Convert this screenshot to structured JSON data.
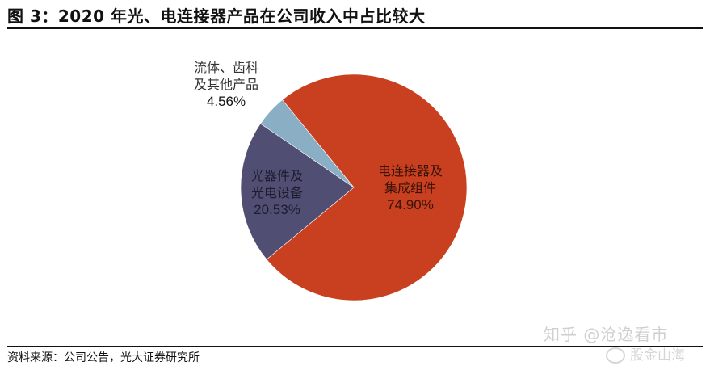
{
  "header": {
    "title": "图 3：2020 年光、电连接器产品在公司收入中占比较大"
  },
  "footer": {
    "source": "资料来源：公司公告，光大证券研究所"
  },
  "watermark": {
    "line1": "知乎 @沧逸看市",
    "line2": "股金山海"
  },
  "colors": {
    "connector": "#C8401F",
    "optical": "#514E73",
    "other": "#8AAFC4",
    "rule": "#111111"
  },
  "labels": {
    "other_line1": "流体、齿科",
    "other_line2": "及其他产品",
    "other_pct": "4.56%",
    "optical_line1": "光器件及",
    "optical_line2": "光电设备",
    "optical_pct": "20.53%",
    "connector_line1": "电连接器及",
    "connector_line2": "集成组件",
    "connector_pct": "74.90%"
  },
  "chart_data": {
    "type": "pie",
    "title": "图 3：2020 年光、电连接器产品在公司收入中占比较大",
    "categories": [
      "电连接器及集成组件",
      "光器件及光电设备",
      "流体、齿科及其他产品"
    ],
    "values": [
      74.9,
      20.53,
      4.56
    ],
    "unit": "%",
    "colors": [
      "#C8401F",
      "#514E73",
      "#8AAFC4"
    ],
    "start_angle_deg_clockwise_from_top": 320.8,
    "legend": "none (inline data labels)",
    "source": "资料来源：公司公告，光大证券研究所"
  }
}
